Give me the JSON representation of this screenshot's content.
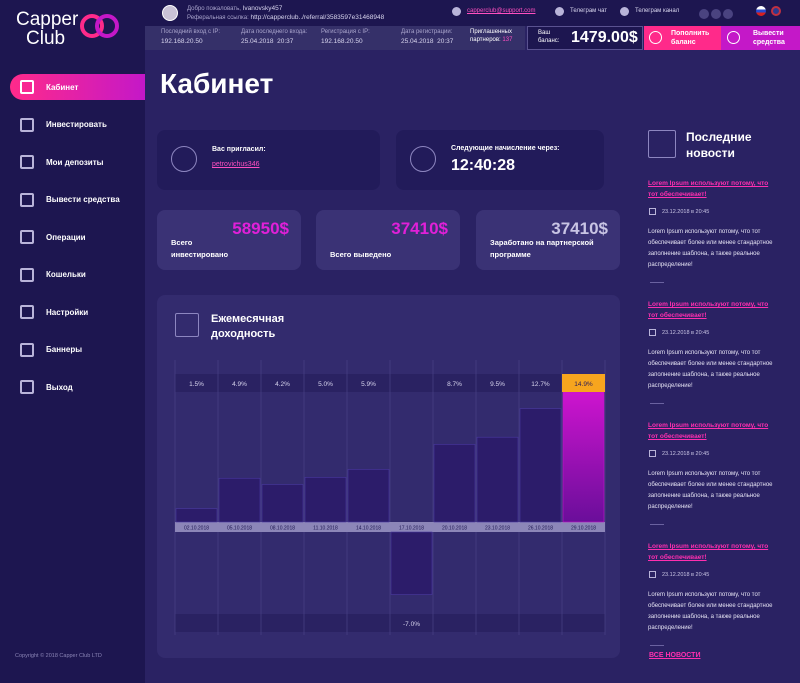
{
  "logo": {
    "line1": "Capper",
    "line2": "Club"
  },
  "topbar": {
    "welcome_label": "Добро пожаловать,",
    "username": "Ivanovsky457",
    "ref_label": "Реферальная ссылка:",
    "ref_link": "http://capperclub../referral/3583597e31468948",
    "email": "capperclub@support.com",
    "telegram_chat": "Телеграм чат",
    "telegram_channel": "Телеграм канал"
  },
  "stats_bar": [
    {
      "label": "Последний вход с IP:",
      "value": "192.168.20.50"
    },
    {
      "label": "Дата последнего входа:",
      "value": "25.04.2018  20:37"
    },
    {
      "label": "Регистрация с IP:",
      "value": "192.168.20.50"
    },
    {
      "label": "Дата регистрации:",
      "value": "25.04.2018  20:37"
    }
  ],
  "partners": {
    "label": "Приглашенных партнеров:",
    "value": "137"
  },
  "balance": {
    "label": "Ваш баланс:",
    "value": "1479.00$"
  },
  "buttons": {
    "deposit": "Пополнить баланс",
    "withdraw": "Вывести средства"
  },
  "menu": [
    "Кабинет",
    "Инвестировать",
    "Мои депозиты",
    "Вывести средства",
    "Операции",
    "Кошельки",
    "Настройки",
    "Баннеры",
    "Выход"
  ],
  "copyright": "Copyright © 2018 Capper Club LTD",
  "page_title": "Кабинет",
  "invited": {
    "label": "Вас пригласил:",
    "value": "petrovichus346"
  },
  "timer": {
    "label": "Следующие начисление через:",
    "value": "12:40:28"
  },
  "totals": [
    {
      "label": "Всего инвестировано",
      "value": "58950$"
    },
    {
      "label": "Всего выведено",
      "value": "37410$"
    },
    {
      "label": "Заработано на партнерской программе",
      "value": "37410$"
    }
  ],
  "chart_data": {
    "type": "bar",
    "title": "Ежемесячная доходность",
    "categories": [
      "02.10.2018",
      "05.10.2018",
      "08.10.2018",
      "11.10.2018",
      "14.10.2018",
      "17.10.2018",
      "20.10.2018",
      "23.10.2018",
      "26.10.2018",
      "29.10.2018"
    ],
    "values": [
      1.5,
      4.9,
      4.2,
      5.0,
      5.9,
      -7.0,
      8.7,
      9.5,
      12.7,
      14.9
    ],
    "value_labels": [
      "1.5%",
      "4.9%",
      "4.2%",
      "5.0%",
      "5.9%",
      "-7.0%",
      "8.7%",
      "9.5%",
      "12.7%",
      "14.9%"
    ],
    "colors": [
      "#2c1c6a",
      "#2c1c6a",
      "#2c1c6a",
      "#2c1c6a",
      "#2c1c6a",
      "#2c1c6a",
      "#2c1c6a",
      "#2c1c6a",
      "#2c1c6a",
      "#c414c8"
    ]
  },
  "news": {
    "title": "Последние новости",
    "items": [
      {
        "headline": "Lorem Ipsum используют потому, что тот обеспечивает!",
        "date": "23.12.2018 в 20:45",
        "text": "Lorem Ipsum используют потому, что тот обеспечивает более или менее стандартное заполнение шаблона, а также реальное распределение!"
      },
      {
        "headline": "Lorem Ipsum используют потому, что тот обеспечивает!",
        "date": "23.12.2018 в 20:45",
        "text": "Lorem Ipsum используют потому, что тот обеспечивает более или менее стандартное заполнение шаблона, а также реальное распределение!"
      },
      {
        "headline": "Lorem Ipsum используют потому, что тот обеспечивает!",
        "date": "23.12.2018 в 20:45",
        "text": "Lorem Ipsum используют потому, что тот обеспечивает более или менее стандартное заполнение шаблона, а также реальное распределение!"
      },
      {
        "headline": "Lorem Ipsum используют потому, что тот обеспечивает!",
        "date": "23.12.2018 в 20:45",
        "text": "Lorem Ipsum используют потому, что тот обеспечивает более или менее стандартное заполнение шаблона, а также реальное распределение!"
      }
    ],
    "all_link": "ВСЕ НОВОСТИ"
  }
}
